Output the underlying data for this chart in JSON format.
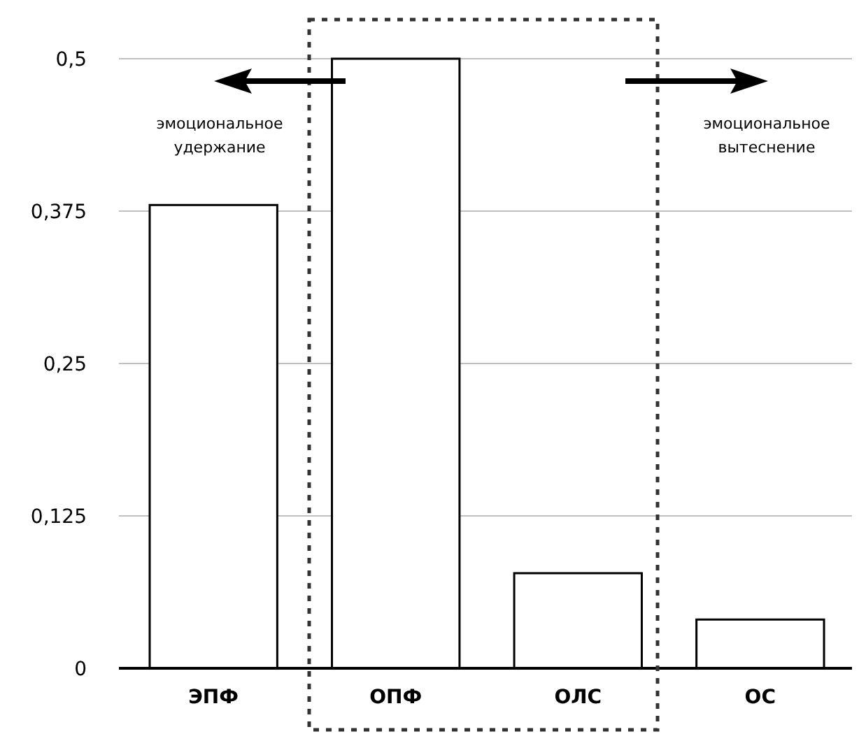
{
  "chart_data": {
    "type": "bar",
    "categories": [
      "ЭПФ",
      "ОПФ",
      "ОЛС",
      "ОС"
    ],
    "values": [
      0.38,
      0.5,
      0.078,
      0.04
    ],
    "color": "#ffffff",
    "ylim": [
      0,
      0.5
    ],
    "yticks": [
      {
        "value": 0,
        "label": "0"
      },
      {
        "value": 0.125,
        "label": "0,125"
      },
      {
        "value": 0.25,
        "label": "0,25"
      },
      {
        "value": 0.375,
        "label": "0,375"
      },
      {
        "value": 0.5,
        "label": "0,5"
      }
    ],
    "grid": "y",
    "annotations": [
      "эмоциональное удержание",
      "эмоциональное вытеснение"
    ]
  }
}
